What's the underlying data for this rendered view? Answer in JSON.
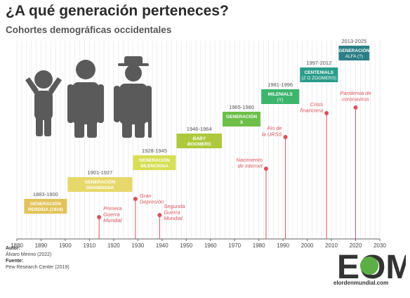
{
  "header": {
    "title": "¿A qué generación perteneces?",
    "subtitle": "Cohortes demográficas occidentales"
  },
  "chart_data": {
    "type": "timeline",
    "xlim": [
      1880,
      2030
    ],
    "ticks": [
      1880,
      1890,
      1900,
      1910,
      1920,
      1930,
      1940,
      1950,
      1960,
      1970,
      1980,
      1990,
      2000,
      2010,
      2020,
      2030
    ],
    "generations": [
      {
        "name": "GENERACIÓN PERDIDA (1914)",
        "line1": "GENERACIÓN",
        "line2": "PERDIDA (1914)",
        "range_label": "1883-1900",
        "start": 1883,
        "end": 1900,
        "color": "#e2c35a"
      },
      {
        "name": "GENERACIÓN GRANDIOSA",
        "line1": "GENERACIÓN",
        "line2": "GRANDIOSA",
        "range_label": "1901-1927",
        "start": 1901,
        "end": 1927,
        "color": "#e6d86a"
      },
      {
        "name": "GENERACIÓN SILENCIOSA",
        "line1": "GENERACIÓN",
        "line2": "SILENCIOSA",
        "range_label": "1928-1945",
        "start": 1928,
        "end": 1945,
        "color": "#d6df55"
      },
      {
        "name": "BABY BOOMERS",
        "line1": "BABY",
        "line2": "BOOMERS",
        "range_label": "1946-1964",
        "start": 1946,
        "end": 1964,
        "color": "#aec93e",
        "italic": true
      },
      {
        "name": "GENERACIÓN X",
        "line1": "GENERACIÓN",
        "line2": "X",
        "range_label": "1965-1980",
        "start": 1965,
        "end": 1980,
        "color": "#6dbf4a"
      },
      {
        "name": "MILENIALS (Y)",
        "line1": "MILENIALS",
        "line2": "(Y)",
        "range_label": "1981-1996",
        "start": 1981,
        "end": 1996,
        "color": "#3db56d"
      },
      {
        "name": "CENTENIALS (Z O ZOOMERS)",
        "line1": "CENTENIALS",
        "line2": "(Z O ZOOMERS)",
        "range_label": "1997-2012",
        "start": 1997,
        "end": 2012,
        "color": "#2a9d8a"
      },
      {
        "name": "GENERACIÓN ALFA (?)",
        "line1": "GENERACIÓN",
        "line2": "ALFA (?)",
        "range_label": "2013-2025",
        "start": 2013,
        "end": 2025,
        "color": "#2a7e86"
      }
    ],
    "events": [
      {
        "year": 1914,
        "lines": [
          "Primera",
          "Guerra",
          "Mundial"
        ],
        "label_side": "right"
      },
      {
        "year": 1929,
        "lines": [
          "Gran",
          "Depresión"
        ],
        "label_side": "right"
      },
      {
        "year": 1939,
        "lines": [
          "Segunda",
          "Guerra",
          "Mundial"
        ],
        "label_side": "right"
      },
      {
        "year": 1983,
        "lines": [
          "Nacimiento",
          "de internet"
        ],
        "label_side": "left"
      },
      {
        "year": 1991,
        "lines": [
          "Fin de",
          "la URSS"
        ],
        "label_side": "left"
      },
      {
        "year": 2008,
        "lines": [
          "Crisis",
          "financiera"
        ],
        "label_side": "left"
      },
      {
        "year": 2020,
        "lines": [
          "Pandemia de",
          "coronavirus"
        ],
        "label_side": "center"
      }
    ],
    "colors": {
      "event": "#d9515c",
      "axis": "#666666",
      "grid": "#dddddd",
      "figures": "#5a5a5a"
    }
  },
  "footer": {
    "author_label": "Autor:",
    "author": "Álvaro Merino (2022)",
    "source_label": "Fuente:",
    "source": "Pew Research Center (2019)"
  },
  "logo": {
    "letters": "EOM",
    "site": "elordenmundial.com"
  }
}
